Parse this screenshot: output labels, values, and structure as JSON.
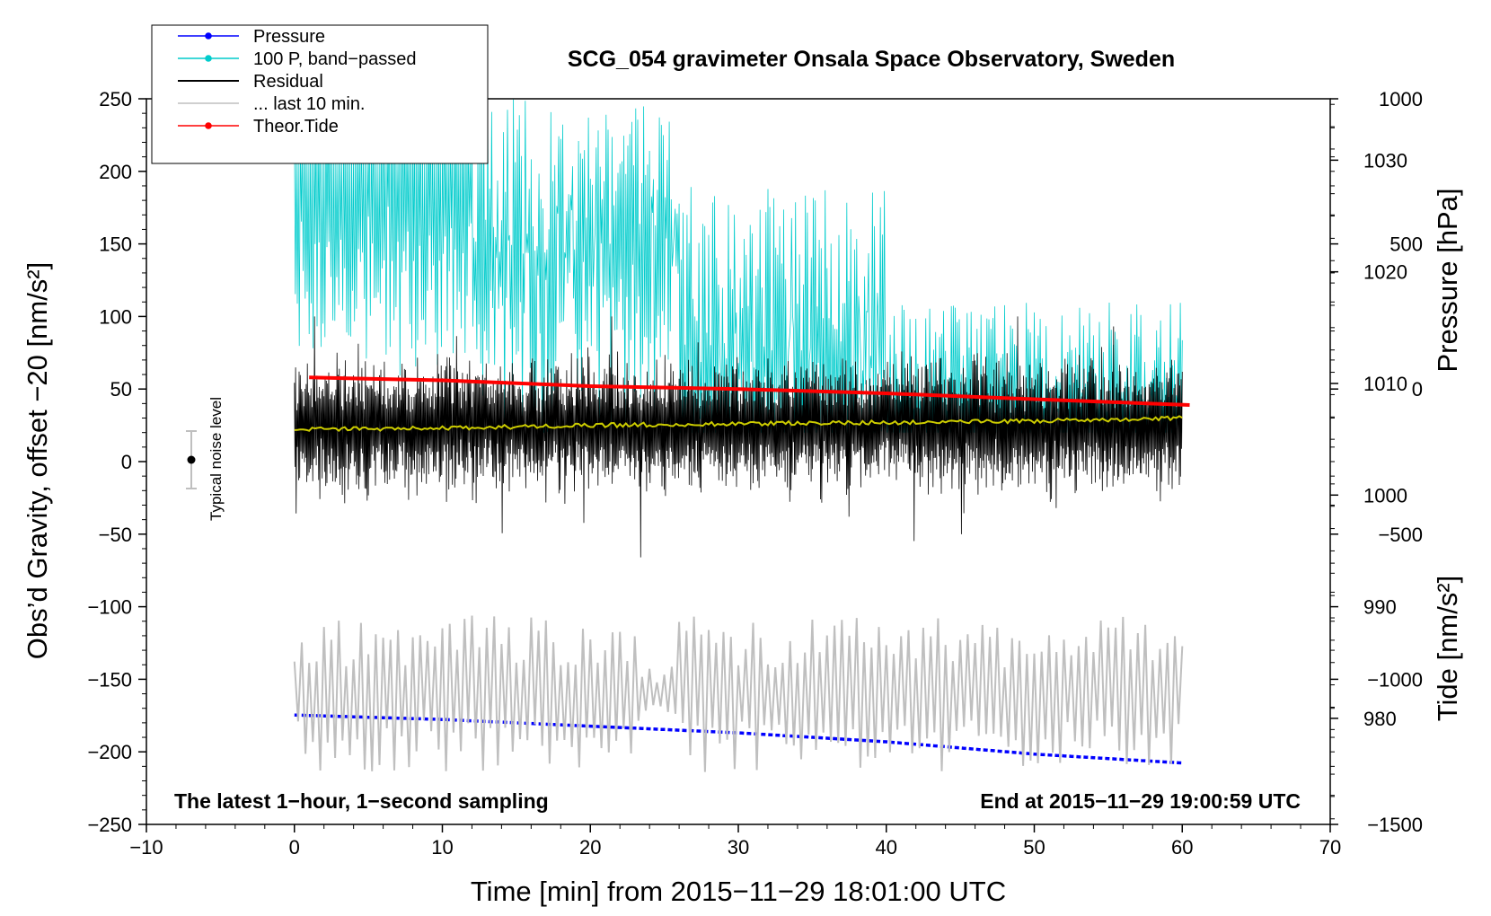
{
  "chart_data": {
    "type": "line",
    "title": "SCG_054 gravimeter Onsala Space Observatory, Sweden",
    "xlabel": "Time [min] from 2015−11−29 18:01:00 UTC",
    "ylabel_left": "Obs’d Gravity, offset −20 [nm/s²]",
    "ylabel_right_top": "Pressure [hPa]",
    "ylabel_right_bottom": "Tide [nm/s²]",
    "xlim": [
      -10,
      70
    ],
    "ylim_left": [
      -250,
      250
    ],
    "x_ticks": [
      "−10",
      "0",
      "10",
      "20",
      "30",
      "40",
      "50",
      "60",
      "70"
    ],
    "x_tick_values": [
      -10,
      0,
      10,
      20,
      30,
      40,
      50,
      60,
      70
    ],
    "y_ticks_left": [
      "250",
      "200",
      "150",
      "100",
      "50",
      "0",
      "−50",
      "−100",
      "−150",
      "−200",
      "−250"
    ],
    "y_tick_values_left": [
      250,
      200,
      150,
      100,
      50,
      0,
      -50,
      -100,
      -150,
      -200,
      -250
    ],
    "pressure_axis": {
      "ticks": [
        "1030",
        "1020",
        "1010",
        "1000",
        "990",
        "980"
      ],
      "tick_values": [
        1030,
        1020,
        1010,
        1000,
        990,
        980
      ],
      "range": [
        970.5,
        1035.5
      ]
    },
    "tide_axis": {
      "ticks": [
        "1000",
        "500",
        "0",
        "−500",
        "−1000",
        "−1500"
      ],
      "tick_values": [
        1000,
        500,
        0,
        -500,
        -1000,
        -1500
      ],
      "range": [
        -1500,
        1000
      ]
    },
    "annotations": {
      "bottom_left": "The latest 1−hour, 1−second sampling",
      "bottom_right": "End at 2015−11−29 19:00:59 UTC",
      "noise_label": "Typical noise level"
    },
    "noise_bar": {
      "x": -7,
      "center": 0,
      "half_range": 20
    },
    "legend": [
      {
        "label": "Pressure",
        "color": "#0000ff",
        "marker": true
      },
      {
        "label": "100 P, band−passed",
        "color": "#00cccc",
        "marker": true
      },
      {
        "label": "Residual",
        "color": "#000000",
        "marker": false
      },
      {
        "label": "... last 10 min.",
        "color": "#bfbfbf",
        "marker": false
      },
      {
        "label": "Theor.Tide",
        "color": "#ff0000",
        "marker": true
      }
    ],
    "series": [
      {
        "name": "Pressure",
        "axis": "pressure",
        "color": "#0000ff",
        "x": [
          0,
          10,
          20,
          30,
          40,
          50,
          60
        ],
        "values": [
          980.3,
          979.9,
          979.3,
          978.7,
          977.9,
          976.8,
          976.0
        ]
      },
      {
        "name": "Residual trend",
        "axis": "left",
        "color": "#cccc00",
        "x": [
          0,
          10,
          20,
          30,
          40,
          50,
          60
        ],
        "values": [
          22,
          23,
          25,
          26,
          27,
          28,
          30
        ]
      },
      {
        "name": "Theor.Tide",
        "axis": "tide",
        "color": "#ff0000",
        "x": [
          1,
          10,
          20,
          30,
          40,
          50,
          60.5
        ],
        "values": [
          40,
          30,
          10,
          0,
          -15,
          -35,
          -55
        ]
      },
      {
        "name": "Residual",
        "axis": "left",
        "color": "#000000",
        "x_range": [
          0,
          60
        ],
        "center": 25,
        "amplitude_approx": 35,
        "max": 100,
        "min": -70
      },
      {
        "name": "100 P, band−passed",
        "axis": "left",
        "color": "#00cccc",
        "x_range": [
          0,
          60
        ],
        "max": 250,
        "min": 20
      },
      {
        "name": "... last 10 min.",
        "axis": "left",
        "color": "#bfbfbf",
        "x_range": [
          0,
          60
        ],
        "center": -160,
        "max": -83,
        "min": -226
      }
    ]
  }
}
